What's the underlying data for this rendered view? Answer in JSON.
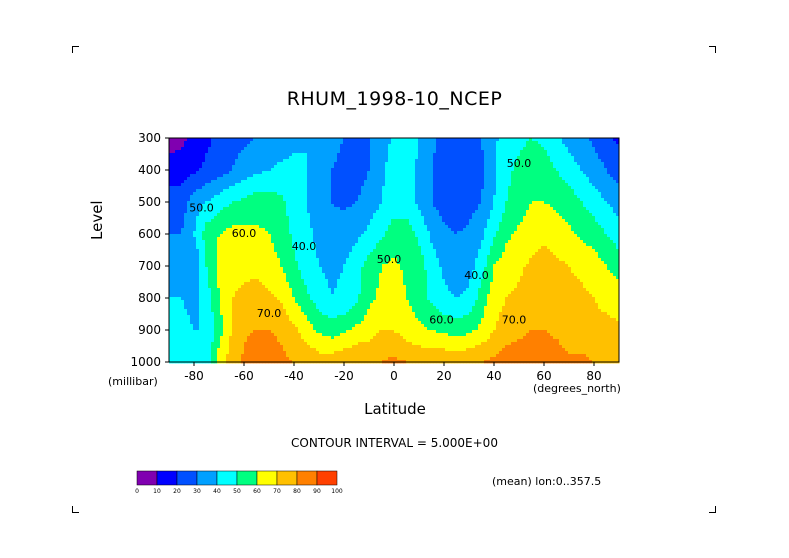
{
  "title": "RHUM_1998-10_NCEP",
  "x_units": "(degrees_north)",
  "y_units": "(millibar)",
  "xlabel": "Latitude",
  "ylabel": "Level",
  "contour_note": "CONTOUR INTERVAL = 5.000E+00",
  "mean_note": "(mean) lon:0..357.5",
  "colors": [
    "#8000b0",
    "#0000ff",
    "#0050ff",
    "#00a0ff",
    "#00ffff",
    "#00ff80",
    "#ffff00",
    "#ffc000",
    "#ff8000",
    "#ff4000",
    "#ff0000"
  ],
  "chart_data": {
    "type": "heatmap",
    "title": "RHUM_1998-10_NCEP",
    "xlabel": "Latitude",
    "ylabel": "Level",
    "xlim": [
      -90,
      90
    ],
    "ylim": [
      1000,
      300
    ],
    "x_ticks": [
      -80,
      -60,
      -40,
      -20,
      0,
      20,
      40,
      60,
      80
    ],
    "y_ticks": [
      300,
      400,
      500,
      600,
      700,
      800,
      900,
      1000
    ],
    "legend_ticks": [
      0,
      10,
      20,
      30,
      40,
      50,
      60,
      70,
      80,
      90,
      100
    ],
    "contour_labels": [
      {
        "text": "50.0",
        "lat": -77,
        "lev": 530
      },
      {
        "text": "60.0",
        "lat": -60,
        "lev": 610
      },
      {
        "text": "40.0",
        "lat": -36,
        "lev": 650
      },
      {
        "text": "50.0",
        "lat": -2,
        "lev": 690
      },
      {
        "text": "70.0",
        "lat": -50,
        "lev": 860
      },
      {
        "text": "40.0",
        "lat": 33,
        "lev": 740
      },
      {
        "text": "60.0",
        "lat": 19,
        "lev": 880
      },
      {
        "text": "70.0",
        "lat": 48,
        "lev": 880
      },
      {
        "text": "50.0",
        "lat": 50,
        "lev": 390
      }
    ],
    "latitudes": [
      -90,
      -85,
      -80,
      -75,
      -70,
      -65,
      -60,
      -55,
      -50,
      -45,
      -40,
      -35,
      -30,
      -25,
      -20,
      -15,
      -10,
      -5,
      0,
      5,
      10,
      15,
      20,
      25,
      30,
      35,
      40,
      45,
      50,
      55,
      60,
      65,
      70,
      75,
      80,
      85,
      90
    ],
    "levels": [
      300,
      400,
      500,
      600,
      700,
      800,
      900,
      1000
    ],
    "values": [
      [
        5,
        8,
        12,
        18,
        22,
        25,
        28,
        30,
        32,
        35,
        38,
        40,
        38,
        36,
        30,
        28,
        30,
        35,
        42,
        45,
        40,
        32,
        28,
        26,
        26,
        30,
        38,
        45,
        48,
        50,
        48,
        42,
        36,
        32,
        28,
        22,
        18
      ],
      [
        15,
        15,
        18,
        22,
        25,
        30,
        35,
        38,
        40,
        42,
        42,
        40,
        35,
        30,
        25,
        25,
        30,
        38,
        45,
        45,
        38,
        30,
        25,
        22,
        22,
        28,
        38,
        48,
        52,
        55,
        55,
        50,
        45,
        40,
        35,
        30,
        25
      ],
      [
        25,
        25,
        35,
        40,
        45,
        50,
        52,
        55,
        55,
        52,
        45,
        40,
        35,
        30,
        28,
        30,
        35,
        40,
        45,
        45,
        38,
        30,
        26,
        24,
        26,
        30,
        40,
        50,
        55,
        60,
        60,
        58,
        55,
        50,
        45,
        40,
        35
      ],
      [
        30,
        30,
        40,
        55,
        60,
        63,
        63,
        62,
        60,
        55,
        48,
        42,
        38,
        35,
        35,
        38,
        42,
        48,
        55,
        55,
        48,
        38,
        32,
        30,
        32,
        38,
        48,
        58,
        62,
        65,
        68,
        65,
        62,
        58,
        55,
        50,
        45
      ],
      [
        35,
        35,
        30,
        50,
        62,
        65,
        68,
        68,
        65,
        60,
        52,
        45,
        40,
        38,
        40,
        45,
        55,
        60,
        62,
        58,
        55,
        45,
        38,
        34,
        36,
        45,
        60,
        65,
        68,
        72,
        75,
        72,
        70,
        68,
        65,
        60,
        55
      ],
      [
        40,
        40,
        35,
        45,
        60,
        70,
        72,
        73,
        72,
        68,
        60,
        52,
        45,
        40,
        42,
        48,
        58,
        62,
        65,
        60,
        55,
        48,
        42,
        40,
        42,
        55,
        65,
        70,
        72,
        75,
        78,
        75,
        72,
        72,
        70,
        68,
        65
      ],
      [
        45,
        45,
        40,
        40,
        55,
        70,
        78,
        80,
        80,
        78,
        72,
        65,
        58,
        55,
        58,
        62,
        65,
        70,
        70,
        65,
        62,
        60,
        58,
        55,
        58,
        62,
        70,
        75,
        78,
        80,
        80,
        78,
        75,
        75,
        72,
        72,
        72
      ],
      [
        45,
        45,
        40,
        45,
        65,
        75,
        82,
        90,
        85,
        82,
        80,
        78,
        75,
        75,
        78,
        80,
        80,
        80,
        82,
        80,
        78,
        78,
        78,
        78,
        78,
        80,
        82,
        85,
        85,
        85,
        85,
        85,
        82,
        82,
        80,
        80,
        80
      ]
    ]
  }
}
